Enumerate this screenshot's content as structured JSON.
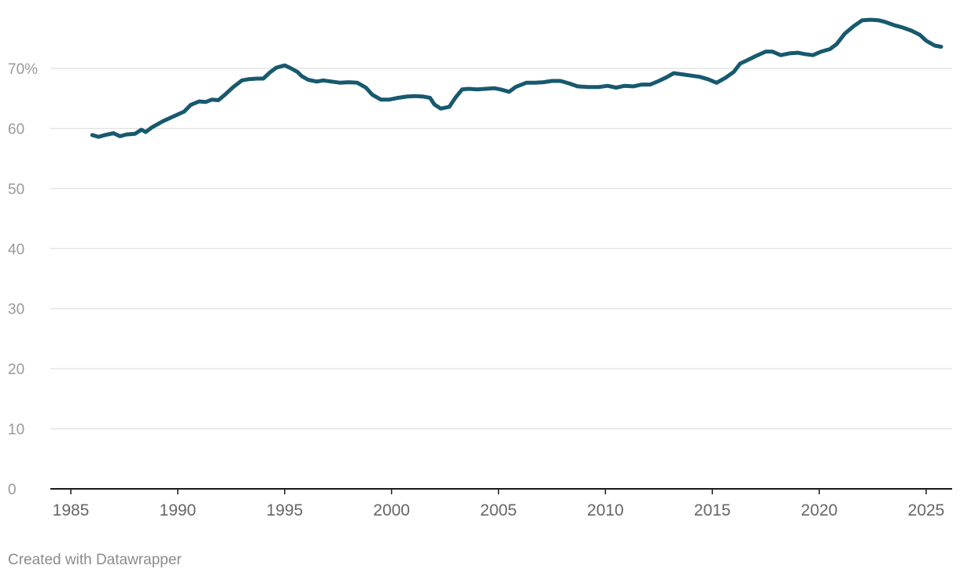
{
  "chart_data": {
    "type": "line",
    "title": "",
    "xlabel": "",
    "ylabel": "",
    "xlim": [
      1985,
      2025.8
    ],
    "ylim": [
      0,
      78
    ],
    "grid": true,
    "x_ticks": [
      1985,
      1990,
      1995,
      2000,
      2005,
      2010,
      2015,
      2020,
      2025
    ],
    "y_ticks": [
      {
        "value": 0,
        "label": "0"
      },
      {
        "value": 10,
        "label": "10"
      },
      {
        "value": 20,
        "label": "20"
      },
      {
        "value": 30,
        "label": "30"
      },
      {
        "value": 40,
        "label": "40"
      },
      {
        "value": 50,
        "label": "50"
      },
      {
        "value": 60,
        "label": "60"
      },
      {
        "value": 70,
        "label": "70%"
      }
    ],
    "series": [
      {
        "color": "#17596f",
        "points": [
          [
            1986.0,
            58.9
          ],
          [
            1986.3,
            58.6
          ],
          [
            1986.6,
            58.9
          ],
          [
            1987.0,
            59.2
          ],
          [
            1987.3,
            58.7
          ],
          [
            1987.6,
            59.0
          ],
          [
            1988.0,
            59.1
          ],
          [
            1988.3,
            59.8
          ],
          [
            1988.5,
            59.4
          ],
          [
            1988.8,
            60.2
          ],
          [
            1989.3,
            61.2
          ],
          [
            1989.8,
            62.0
          ],
          [
            1990.3,
            62.8
          ],
          [
            1990.6,
            63.9
          ],
          [
            1991.0,
            64.5
          ],
          [
            1991.3,
            64.4
          ],
          [
            1991.6,
            64.8
          ],
          [
            1991.9,
            64.7
          ],
          [
            1992.2,
            65.6
          ],
          [
            1992.6,
            66.9
          ],
          [
            1993.0,
            68.0
          ],
          [
            1993.3,
            68.2
          ],
          [
            1993.7,
            68.3
          ],
          [
            1994.0,
            68.3
          ],
          [
            1994.3,
            69.3
          ],
          [
            1994.6,
            70.1
          ],
          [
            1995.0,
            70.5
          ],
          [
            1995.3,
            70.0
          ],
          [
            1995.6,
            69.4
          ],
          [
            1995.8,
            68.7
          ],
          [
            1996.1,
            68.1
          ],
          [
            1996.5,
            67.8
          ],
          [
            1996.8,
            68.0
          ],
          [
            1997.2,
            67.8
          ],
          [
            1997.6,
            67.6
          ],
          [
            1998.0,
            67.7
          ],
          [
            1998.4,
            67.6
          ],
          [
            1998.8,
            66.8
          ],
          [
            1999.1,
            65.6
          ],
          [
            1999.5,
            64.8
          ],
          [
            1999.9,
            64.8
          ],
          [
            2000.3,
            65.1
          ],
          [
            2000.7,
            65.3
          ],
          [
            2001.1,
            65.4
          ],
          [
            2001.5,
            65.3
          ],
          [
            2001.8,
            65.1
          ],
          [
            2002.0,
            64.0
          ],
          [
            2002.3,
            63.3
          ],
          [
            2002.7,
            63.6
          ],
          [
            2003.0,
            65.2
          ],
          [
            2003.3,
            66.5
          ],
          [
            2003.6,
            66.6
          ],
          [
            2004.0,
            66.5
          ],
          [
            2004.4,
            66.6
          ],
          [
            2004.8,
            66.7
          ],
          [
            2005.1,
            66.5
          ],
          [
            2005.5,
            66.1
          ],
          [
            2005.8,
            66.9
          ],
          [
            2006.3,
            67.6
          ],
          [
            2006.7,
            67.6
          ],
          [
            2007.1,
            67.7
          ],
          [
            2007.5,
            67.9
          ],
          [
            2007.9,
            67.9
          ],
          [
            2008.3,
            67.5
          ],
          [
            2008.7,
            67.0
          ],
          [
            2009.2,
            66.9
          ],
          [
            2009.7,
            66.9
          ],
          [
            2010.1,
            67.1
          ],
          [
            2010.5,
            66.8
          ],
          [
            2010.9,
            67.1
          ],
          [
            2011.3,
            67.0
          ],
          [
            2011.7,
            67.3
          ],
          [
            2012.1,
            67.3
          ],
          [
            2012.5,
            67.9
          ],
          [
            2012.9,
            68.6
          ],
          [
            2013.2,
            69.2
          ],
          [
            2013.6,
            69.0
          ],
          [
            2014.0,
            68.8
          ],
          [
            2014.4,
            68.6
          ],
          [
            2014.8,
            68.2
          ],
          [
            2015.2,
            67.6
          ],
          [
            2015.6,
            68.4
          ],
          [
            2016.0,
            69.4
          ],
          [
            2016.3,
            70.8
          ],
          [
            2016.6,
            71.3
          ],
          [
            2017.0,
            72.0
          ],
          [
            2017.5,
            72.8
          ],
          [
            2017.8,
            72.8
          ],
          [
            2018.2,
            72.2
          ],
          [
            2018.6,
            72.5
          ],
          [
            2019.0,
            72.6
          ],
          [
            2019.3,
            72.4
          ],
          [
            2019.7,
            72.2
          ],
          [
            2020.1,
            72.8
          ],
          [
            2020.5,
            73.2
          ],
          [
            2020.8,
            74.0
          ],
          [
            2021.2,
            75.8
          ],
          [
            2021.6,
            77.0
          ],
          [
            2022.0,
            78.0
          ],
          [
            2022.4,
            78.1
          ],
          [
            2022.8,
            78.0
          ],
          [
            2023.1,
            77.7
          ],
          [
            2023.5,
            77.2
          ],
          [
            2023.9,
            76.8
          ],
          [
            2024.3,
            76.3
          ],
          [
            2024.7,
            75.6
          ],
          [
            2025.0,
            74.6
          ],
          [
            2025.4,
            73.8
          ],
          [
            2025.7,
            73.6
          ]
        ]
      }
    ]
  },
  "footer": {
    "credit": "Created with Datawrapper"
  }
}
